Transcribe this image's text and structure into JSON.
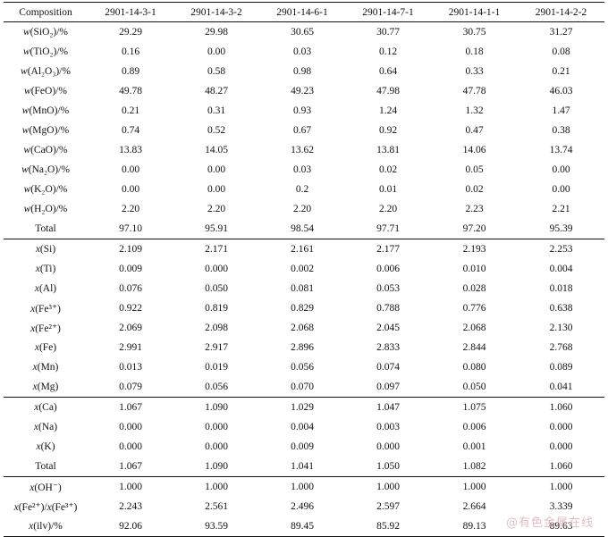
{
  "table": {
    "header": {
      "label": "Composition",
      "samples": [
        "2901-14-3-1",
        "2901-14-3-2",
        "2901-14-6-1",
        "2901-14-7-1",
        "2901-14-1-1",
        "2901-14-2-2"
      ]
    },
    "oxides": [
      {
        "label": "w(SiO₂)/%",
        "values": [
          "29.29",
          "29.98",
          "30.65",
          "30.77",
          "30.75",
          "31.27"
        ]
      },
      {
        "label": "w(TiO₂)/%",
        "values": [
          "0.16",
          "0.00",
          "0.03",
          "0.12",
          "0.18",
          "0.08"
        ]
      },
      {
        "label": "w(Al₂O₃)/%",
        "values": [
          "0.89",
          "0.58",
          "0.98",
          "0.64",
          "0.33",
          "0.21"
        ]
      },
      {
        "label": "w(FeO)/%",
        "values": [
          "49.78",
          "48.27",
          "49.23",
          "47.98",
          "47.78",
          "46.03"
        ]
      },
      {
        "label": "w(MnO)/%",
        "values": [
          "0.21",
          "0.31",
          "0.93",
          "1.24",
          "1.32",
          "1.47"
        ]
      },
      {
        "label": "w(MgO)/%",
        "values": [
          "0.74",
          "0.52",
          "0.67",
          "0.92",
          "0.47",
          "0.38"
        ]
      },
      {
        "label": "w(CaO)/%",
        "values": [
          "13.83",
          "14.05",
          "13.62",
          "13.81",
          "14.06",
          "13.74"
        ]
      },
      {
        "label": "w(Na₂O)/%",
        "values": [
          "0.00",
          "0.00",
          "0.03",
          "0.02",
          "0.05",
          "0.00"
        ]
      },
      {
        "label": "w(K₂O)/%",
        "values": [
          "0.00",
          "0.00",
          "0.2",
          "0.01",
          "0.02",
          "0.00"
        ]
      },
      {
        "label": "w(H₂O)/%",
        "values": [
          "2.20",
          "2.20",
          "2.20",
          "2.20",
          "2.23",
          "2.21"
        ]
      },
      {
        "label": "Total",
        "values": [
          "97.10",
          "95.91",
          "98.54",
          "97.71",
          "97.20",
          "95.39"
        ]
      }
    ],
    "cations_y": [
      {
        "label": "x(Si)",
        "values": [
          "2.109",
          "2.171",
          "2.161",
          "2.177",
          "2.193",
          "2.253"
        ]
      },
      {
        "label": "x(Ti)",
        "values": [
          "0.009",
          "0.000",
          "0.002",
          "0.006",
          "0.010",
          "0.004"
        ]
      },
      {
        "label": "x(Al)",
        "values": [
          "0.076",
          "0.050",
          "0.081",
          "0.053",
          "0.028",
          "0.018"
        ]
      },
      {
        "label": "x(Fe³⁺)",
        "values": [
          "0.922",
          "0.819",
          "0.829",
          "0.788",
          "0.776",
          "0.638"
        ]
      },
      {
        "label": "x(Fe²⁺)",
        "values": [
          "2.069",
          "2.098",
          "2.068",
          "2.045",
          "2.068",
          "2.130"
        ]
      },
      {
        "label": "x(Fe)",
        "values": [
          "2.991",
          "2.917",
          "2.896",
          "2.833",
          "2.844",
          "2.768"
        ]
      },
      {
        "label": "x(Mn)",
        "values": [
          "0.013",
          "0.019",
          "0.056",
          "0.074",
          "0.080",
          "0.089"
        ]
      },
      {
        "label": "x(Mg)",
        "values": [
          "0.079",
          "0.056",
          "0.070",
          "0.097",
          "0.050",
          "0.041"
        ]
      }
    ],
    "cations_x": [
      {
        "label": "x(Ca)",
        "values": [
          "1.067",
          "1.090",
          "1.029",
          "1.047",
          "1.075",
          "1.060"
        ]
      },
      {
        "label": "x(Na)",
        "values": [
          "0.000",
          "0.000",
          "0.004",
          "0.003",
          "0.006",
          "0.000"
        ]
      },
      {
        "label": "x(K)",
        "values": [
          "0.000",
          "0.000",
          "0.009",
          "0.000",
          "0.001",
          "0.000"
        ]
      },
      {
        "label": "Total",
        "values": [
          "1.067",
          "1.090",
          "1.041",
          "1.050",
          "1.082",
          "1.060"
        ]
      }
    ],
    "ratios": [
      {
        "label": "x(OH⁻)",
        "values": [
          "1.000",
          "1.000",
          "1.000",
          "1.000",
          "1.000",
          "1.000"
        ]
      },
      {
        "label": "x(Fe²⁺)/x(Fe³⁺)",
        "values": [
          "2.243",
          "2.561",
          "2.496",
          "2.597",
          "2.664",
          "3.339"
        ]
      },
      {
        "label": "x(ilv)/%",
        "values": [
          "92.06",
          "93.59",
          "89.45",
          "85.92",
          "89.13",
          "89.63"
        ]
      }
    ]
  },
  "watermark": "@有色金属在线"
}
